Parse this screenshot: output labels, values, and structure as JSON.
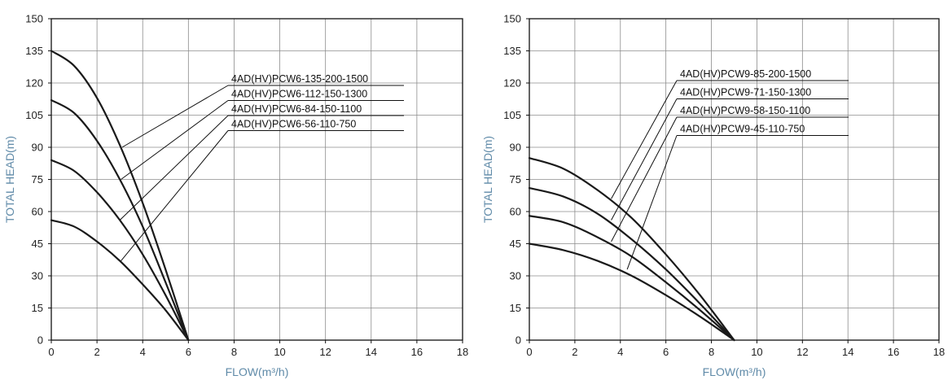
{
  "colors": {
    "axis_title": "#5f8aa8",
    "curve": "#1a1a1a",
    "grid": "#8c8c8c",
    "frame": "#111111"
  },
  "chart_data": [
    {
      "type": "line",
      "xlabel": "FLOW(m³/h)",
      "ylabel": "TOTAL HEAD(m)",
      "xlim": [
        0,
        18
      ],
      "ylim": [
        0,
        150
      ],
      "x_ticks": [
        "0",
        "2",
        "4",
        "6",
        "8",
        "10",
        "12",
        "14",
        "16",
        "18"
      ],
      "y_ticks": [
        "0",
        "15",
        "30",
        "45",
        "60",
        "75",
        "90",
        "105",
        "120",
        "135",
        "150"
      ],
      "grid": true,
      "series": [
        {
          "name": "4AD(HV)PCW6-135-200-1500",
          "x": [
            0,
            1,
            2,
            3,
            4,
            5,
            6
          ],
          "y": [
            135,
            128,
            113,
            91,
            64,
            33,
            0
          ]
        },
        {
          "name": "4AD(HV)PCW6-112-150-1300",
          "x": [
            0,
            1,
            2,
            3,
            4,
            5,
            6
          ],
          "y": [
            112,
            106,
            93,
            75,
            53,
            27,
            0
          ]
        },
        {
          "name": "4AD(HV)PCW6-84-150-1100",
          "x": [
            0,
            1,
            2,
            3,
            4,
            5,
            6
          ],
          "y": [
            84,
            79,
            69,
            56,
            40,
            21,
            0
          ]
        },
        {
          "name": "4AD(HV)PCW6-56-110-750",
          "x": [
            0,
            1,
            2,
            3,
            4,
            5,
            6
          ],
          "y": [
            56,
            53,
            46,
            37,
            26,
            14,
            0
          ]
        }
      ]
    },
    {
      "type": "line",
      "xlabel": "FLOW(m³/h)",
      "ylabel": "TOTAL HEAD(m)",
      "xlim": [
        0,
        18
      ],
      "ylim": [
        0,
        150
      ],
      "x_ticks": [
        "0",
        "2",
        "4",
        "6",
        "8",
        "10",
        "12",
        "14",
        "16",
        "18"
      ],
      "y_ticks": [
        "0",
        "15",
        "30",
        "45",
        "60",
        "75",
        "90",
        "105",
        "120",
        "135",
        "150"
      ],
      "grid": true,
      "series": [
        {
          "name": "4AD(HV)PCW9-85-200-1500",
          "x": [
            0,
            1.5,
            3,
            4.5,
            6,
            7.5,
            9
          ],
          "y": [
            85,
            80,
            70,
            57,
            40,
            21,
            0
          ]
        },
        {
          "name": "4AD(HV)PCW9-71-150-1300",
          "x": [
            0,
            1.5,
            3,
            4.5,
            6,
            7.5,
            9
          ],
          "y": [
            71,
            67,
            59,
            47,
            33,
            17,
            0
          ]
        },
        {
          "name": "4AD(HV)PCW9-58-150-1100",
          "x": [
            0,
            1.5,
            3,
            4.5,
            6,
            7.5,
            9
          ],
          "y": [
            58,
            55,
            48,
            39,
            27,
            14,
            0
          ]
        },
        {
          "name": "4AD(HV)PCW9-45-110-750",
          "x": [
            0,
            1.5,
            3,
            4.5,
            6,
            7.5,
            9
          ],
          "y": [
            45,
            42,
            37,
            30,
            21,
            11,
            0
          ]
        }
      ]
    }
  ]
}
